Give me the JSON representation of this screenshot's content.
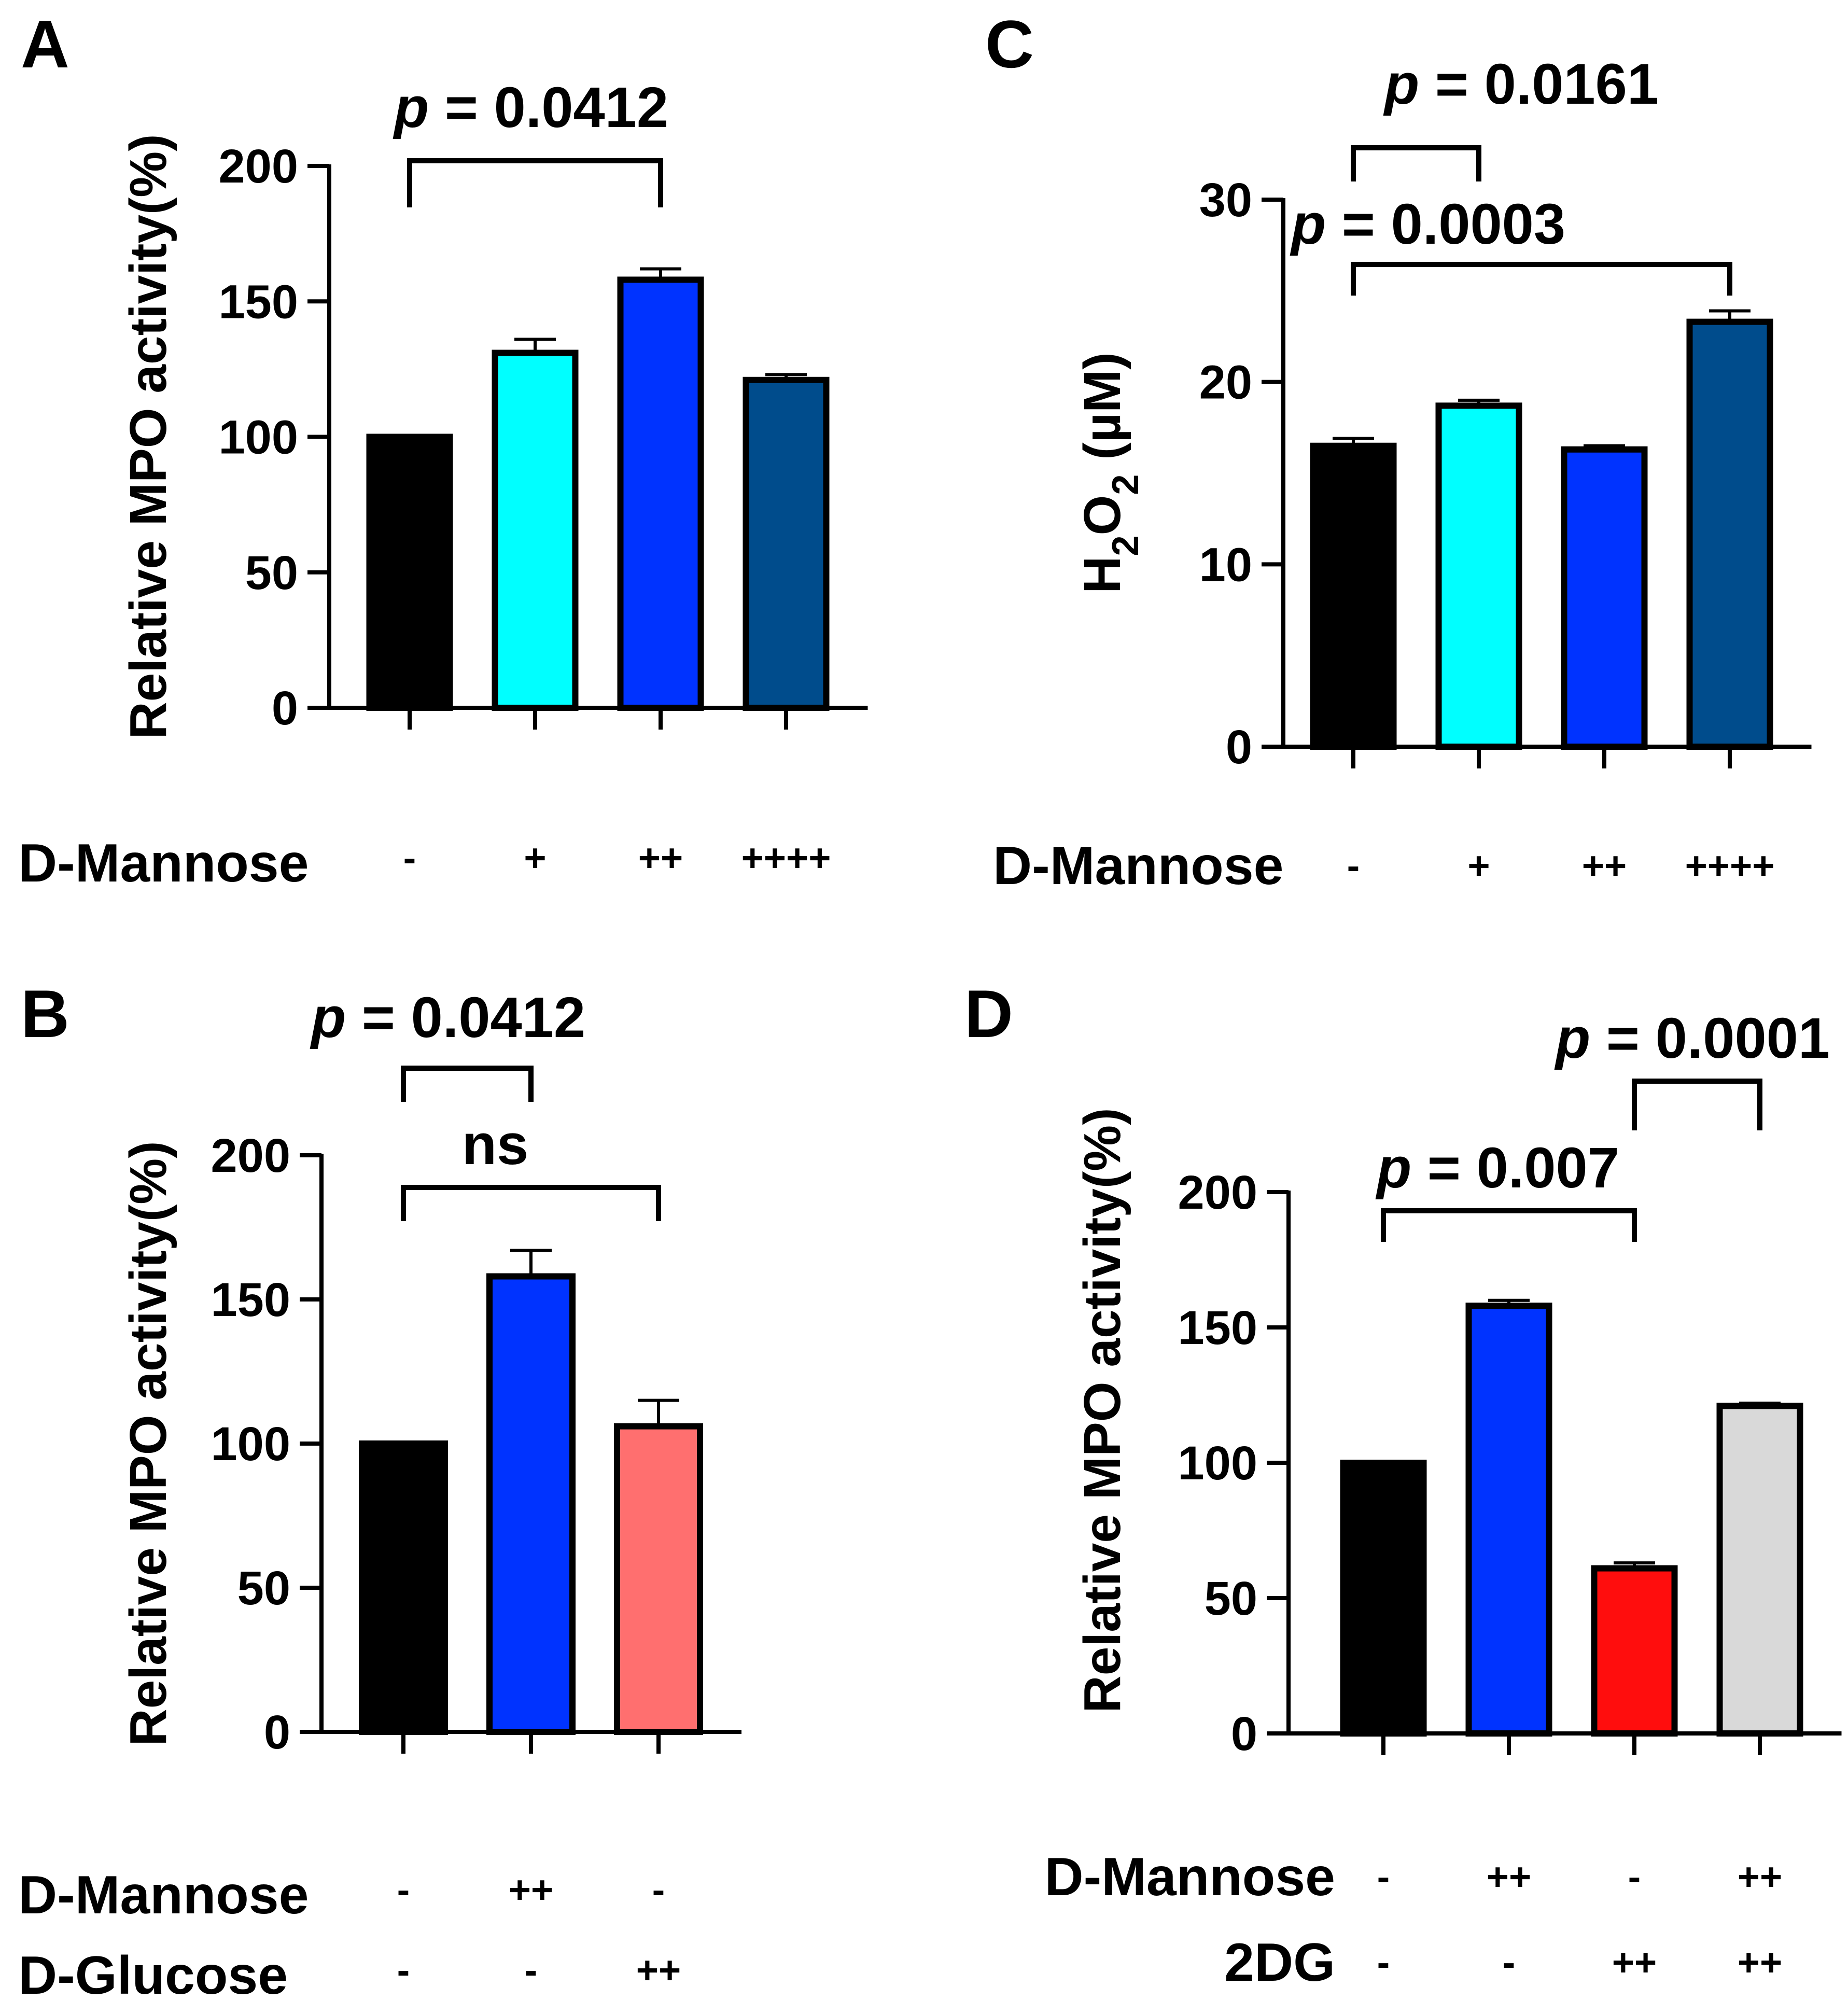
{
  "chart_data": [
    {
      "panel": "A",
      "type": "bar",
      "ylabel": "Relative MPO activity(%)",
      "ylim": [
        0,
        200
      ],
      "yticks": [
        0,
        50,
        100,
        150,
        200
      ],
      "tick_labels": [
        "0",
        "50",
        "100",
        "150",
        "200"
      ],
      "values": [
        100,
        131,
        158,
        121
      ],
      "errors": [
        0,
        5,
        4,
        2
      ],
      "colors": [
        "#000000",
        "#00FFFF",
        "#0033FF",
        "#004C8C"
      ],
      "conditions": [
        {
          "label": "D-Mannose",
          "levels": [
            "-",
            "+",
            "++",
            "++++"
          ]
        }
      ],
      "comparisons": [
        {
          "from": 0,
          "to": 2,
          "p_prefix": "p",
          "p_rest": " = 0.0412"
        }
      ]
    },
    {
      "panel": "B",
      "type": "bar",
      "ylabel": "Relative MPO activity(%)",
      "ylim": [
        0,
        200
      ],
      "yticks": [
        0,
        50,
        100,
        150,
        200
      ],
      "tick_labels": [
        "0",
        "50",
        "100",
        "150",
        "200"
      ],
      "values": [
        100,
        158,
        106
      ],
      "errors": [
        0,
        9,
        9
      ],
      "colors": [
        "#000000",
        "#0033FF",
        "#FF6F6F"
      ],
      "conditions": [
        {
          "label": "D-Mannose",
          "levels": [
            "-",
            "++",
            "-"
          ]
        },
        {
          "label": "D-Glucose",
          "levels": [
            "-",
            "-",
            "++"
          ]
        }
      ],
      "comparisons": [
        {
          "from": 0,
          "to": 1,
          "p_prefix": "p",
          "p_rest": " = 0.0412"
        },
        {
          "from": 0,
          "to": 2,
          "p_prefix": "",
          "p_rest": "ns"
        }
      ]
    },
    {
      "panel": "C",
      "type": "bar",
      "ylabel_main": "H",
      "ylabel_sub1": "2",
      "ylabel_mid": "O",
      "ylabel_sub2": "2",
      "ylabel_unit": " (µM)",
      "ylim": [
        0,
        30
      ],
      "yticks": [
        0,
        10,
        20,
        30
      ],
      "tick_labels": [
        "0",
        "10",
        "20",
        "30"
      ],
      "values": [
        16.5,
        18.7,
        16.3,
        23.3
      ],
      "errors": [
        0.4,
        0.3,
        0.2,
        0.6
      ],
      "colors": [
        "#000000",
        "#00FFFF",
        "#0033FF",
        "#004C8C"
      ],
      "conditions": [
        {
          "label": "D-Mannose",
          "levels": [
            "-",
            "+",
            "++",
            "++++"
          ]
        }
      ],
      "comparisons": [
        {
          "from": 0,
          "to": 1,
          "p_prefix": "p",
          "p_rest": " = 0.0161"
        },
        {
          "from": 0,
          "to": 3,
          "p_prefix": "p",
          "p_rest": " = 0.0003"
        }
      ]
    },
    {
      "panel": "D",
      "type": "bar",
      "ylabel": "Relative MPO activity(%)",
      "ylim": [
        0,
        200
      ],
      "yticks": [
        0,
        50,
        100,
        150,
        200
      ],
      "tick_labels": [
        "0",
        "50",
        "100",
        "150",
        "200"
      ],
      "values": [
        100,
        158,
        61,
        121
      ],
      "errors": [
        0,
        2,
        2,
        1
      ],
      "colors": [
        "#000000",
        "#0033FF",
        "#FF0D0D",
        "#D9D9D9"
      ],
      "conditions": [
        {
          "label": "D-Mannose",
          "levels": [
            "-",
            "++",
            "-",
            "++"
          ]
        },
        {
          "label": "2DG",
          "levels": [
            "-",
            "-",
            "++",
            "++"
          ]
        }
      ],
      "comparisons": [
        {
          "from": 0,
          "to": 2,
          "p_prefix": "p",
          "p_rest": " = 0.007"
        },
        {
          "from": 2,
          "to": 3,
          "p_prefix": "p",
          "p_rest": " = 0.0001"
        }
      ]
    }
  ]
}
